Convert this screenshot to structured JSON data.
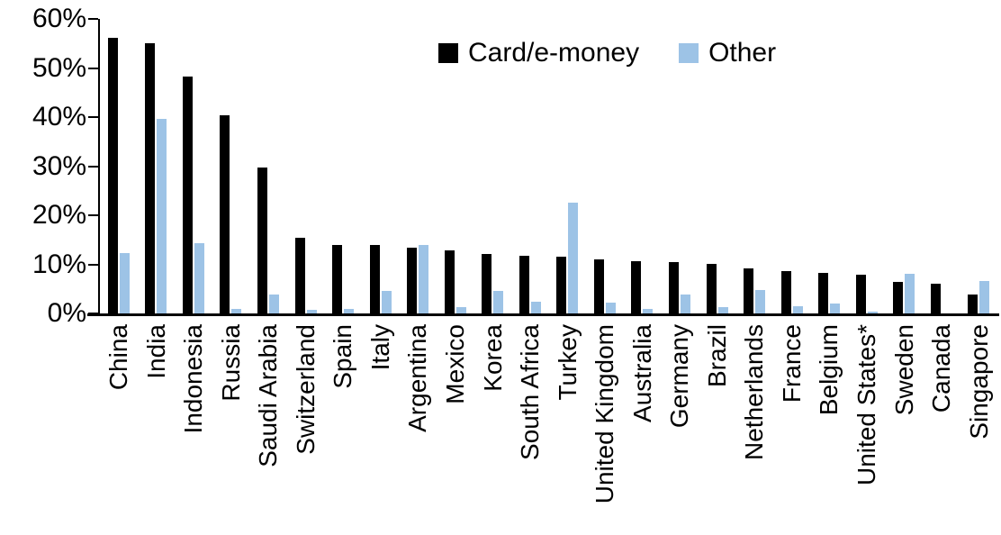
{
  "chart_data": {
    "type": "bar",
    "title": "",
    "xlabel": "",
    "ylabel": "",
    "ylim": [
      0,
      60
    ],
    "ytick_step": 10,
    "yticks_top_down": [
      "60%",
      "50%",
      "40%",
      "30%",
      "20%",
      "10%",
      "0%"
    ],
    "grid": false,
    "legend_position": "top-center",
    "categories": [
      "China",
      "India",
      "Indonesia",
      "Russia",
      "Saudi Arabia",
      "Switzerland",
      "Spain",
      "Italy",
      "Argentina",
      "Mexico",
      "Korea",
      "South Africa",
      "Turkey",
      "United Kingdom",
      "Australia",
      "Germany",
      "Brazil",
      "Netherlands",
      "France",
      "Belgium",
      "United States*",
      "Sweden",
      "Canada",
      "Singapore"
    ],
    "series": [
      {
        "name": "Card/e-money",
        "color": "#000000",
        "values": [
          56.1,
          55.0,
          48.2,
          40.3,
          29.8,
          15.5,
          14.0,
          14.0,
          13.4,
          12.9,
          12.2,
          11.7,
          11.6,
          11.0,
          10.7,
          10.5,
          10.0,
          9.2,
          8.7,
          8.2,
          7.9,
          6.5,
          6.0,
          3.9
        ]
      },
      {
        "name": "Other",
        "color": "#9dc3e6",
        "values": [
          12.3,
          39.7,
          14.4,
          0.9,
          3.8,
          0.7,
          0.9,
          4.6,
          13.9,
          1.3,
          4.5,
          2.3,
          22.6,
          2.2,
          1.0,
          3.9,
          1.2,
          4.8,
          1.5,
          2.0,
          0.3,
          8.0,
          0.0,
          6.6
        ]
      }
    ],
    "axis_color": "#000000"
  },
  "legend": {
    "card_label": "Card/e-money",
    "other_label": "Other"
  }
}
